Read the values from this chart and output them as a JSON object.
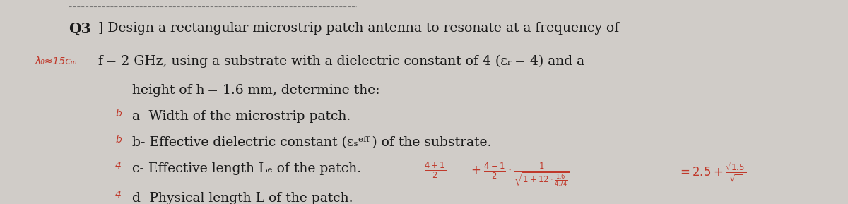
{
  "bg_color": "#d0ccc8",
  "title_prefix": "Q3│",
  "line1": "Design a rectangular microstrip patch antenna to resonate at a frequency of",
  "line2": " f = 2 GHz, using a substrate with a dielectric constant of 4 (εᵣ = 4) and a",
  "line3": "        height of h = 1.6 mm, determine the:",
  "item_a": "  a- Width of the microstrip patch.",
  "item_b": "  b- Effective dielectric constant (εᵣᴬᶠᶠ) of the substrate.",
  "item_c": "  c- Effective length Lₑ of the patch.",
  "item_d": "  d- Physical length L of the patch.",
  "handwritten_left": "λ₀∖15ᴄₘ",
  "handwritten_labels_left": [
    "b",
    "b",
    "4",
    "4"
  ],
  "handwritten_formula": "4+1   4-1        1\n——— + ——— · ————————— = 2.5 + √1.5\n  2      2   √1+12·1.6\n                    4.74",
  "text_color_main": "#1a1a1a",
  "text_color_handwritten": "#c0392b",
  "font_size_main": 13.5,
  "font_size_formula": 11
}
